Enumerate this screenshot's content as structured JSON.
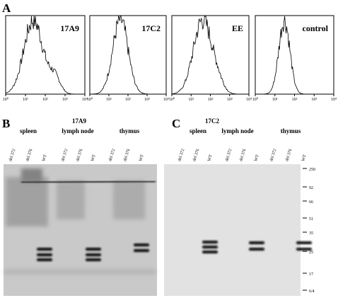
{
  "panel_a": {
    "label": "A",
    "histograms": [
      "17A9",
      "17C2",
      "EE",
      "control"
    ],
    "axis_ticks": [
      "10⁰",
      "10¹",
      "10²",
      "10³",
      "10⁴"
    ]
  },
  "panel_b": {
    "label": "B",
    "antibody": "17A9",
    "tissues": [
      "spleen",
      "lymph node",
      "thymus"
    ],
    "lanes": [
      "del 372",
      "del 376",
      "WT",
      "del 372",
      "del 376",
      "WT",
      "del 372",
      "del 376",
      "WT"
    ]
  },
  "panel_c": {
    "label": "C",
    "antibody": "17C2",
    "tissues": [
      "spleen",
      "lymph node",
      "thymus"
    ],
    "lanes": [
      "del 372",
      "del 376",
      "WT",
      "del 372",
      "del 376",
      "WT",
      "del 372",
      "del 376",
      "WT"
    ],
    "markers": [
      "250",
      "92",
      "66",
      "51",
      "35",
      "25",
      "17",
      "6/4"
    ]
  }
}
